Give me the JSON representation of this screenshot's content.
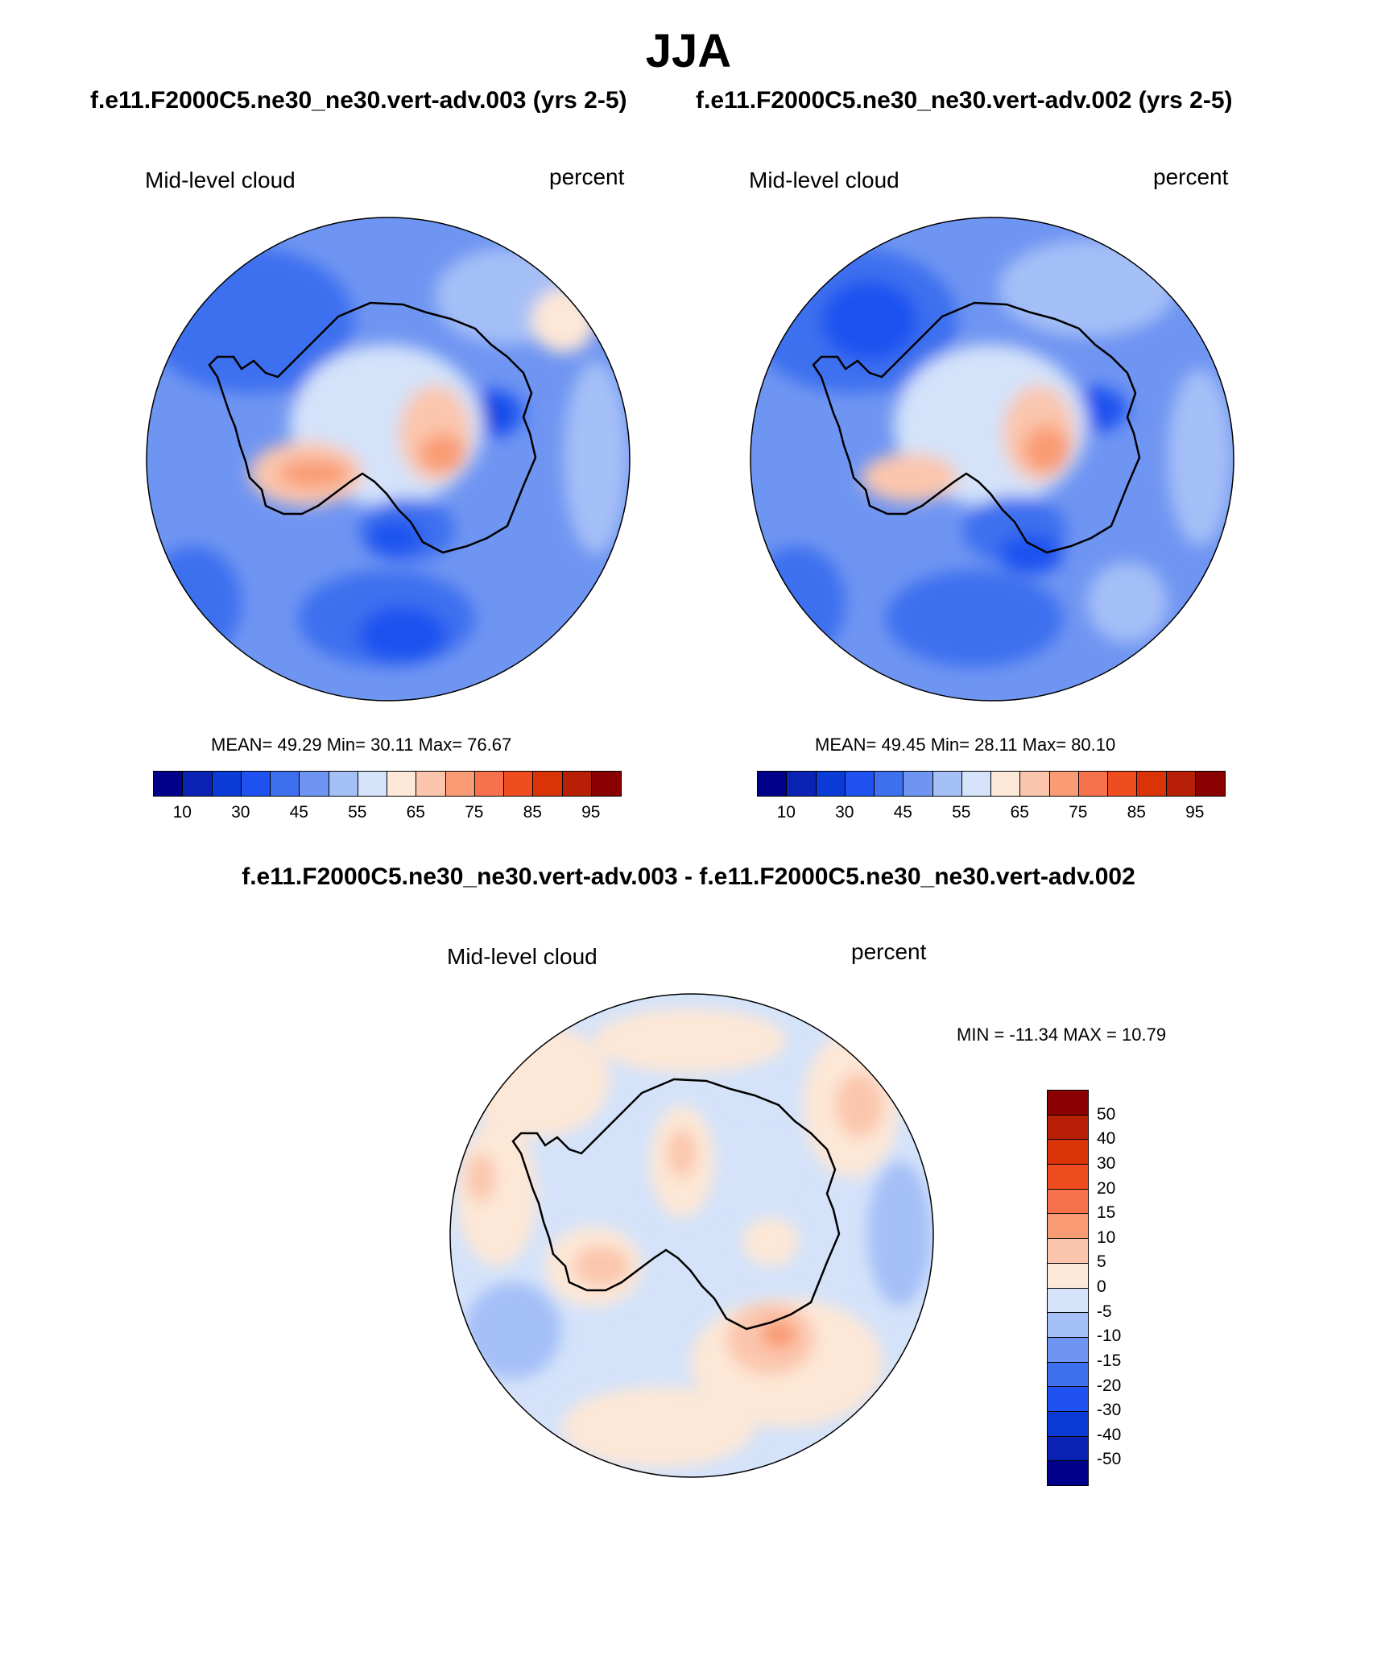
{
  "title": "JJA",
  "case1_title": "f.e11.F2000C5.ne30_ne30.vert-adv.003 (yrs 2-5)",
  "case2_title": "f.e11.F2000C5.ne30_ne30.vert-adv.002 (yrs 2-5)",
  "diff_title": "f.e11.F2000C5.ne30_ne30.vert-adv.003 - f.e11.F2000C5.ne30_ne30.vert-adv.002",
  "panels": [
    {
      "variable": "Mid-level cloud",
      "units": "percent",
      "stats": "MEAN=  49.29  Min=  30.11  Max=  76.67"
    },
    {
      "variable": "Mid-level cloud",
      "units": "percent",
      "stats": "MEAN=  49.45  Min=  28.11  Max=  80.10"
    },
    {
      "variable": "Mid-level cloud",
      "units": "percent",
      "stats": "MIN = -11.34 MAX =  10.79"
    }
  ],
  "colorbar_abs": {
    "colors": [
      "#00008b",
      "#0b23b4",
      "#0b3bd6",
      "#1f52f0",
      "#3d6fef",
      "#6f95f2",
      "#a5bff7",
      "#d4e3fa",
      "#fde7d6",
      "#fbc6ad",
      "#f99c75",
      "#f7714d",
      "#ef4d20",
      "#da3308",
      "#b72006",
      "#8b0000"
    ],
    "labels": [
      "10",
      "30",
      "45",
      "55",
      "65",
      "75",
      "85",
      "95"
    ]
  },
  "colorbar_diff": {
    "colors": [
      "#8b0000",
      "#b72006",
      "#da3308",
      "#ef4d20",
      "#f7714d",
      "#f99c75",
      "#fbc6ad",
      "#fde7d6",
      "#d4e3fa",
      "#a5bff7",
      "#6f95f2",
      "#3d6fef",
      "#1f52f0",
      "#0b3bd6",
      "#0b23b4",
      "#00008b"
    ],
    "labels": [
      "50",
      "40",
      "30",
      "20",
      "15",
      "10",
      "5",
      "0",
      "-5",
      "-10",
      "-15",
      "-20",
      "-30",
      "-40",
      "-50"
    ]
  }
}
